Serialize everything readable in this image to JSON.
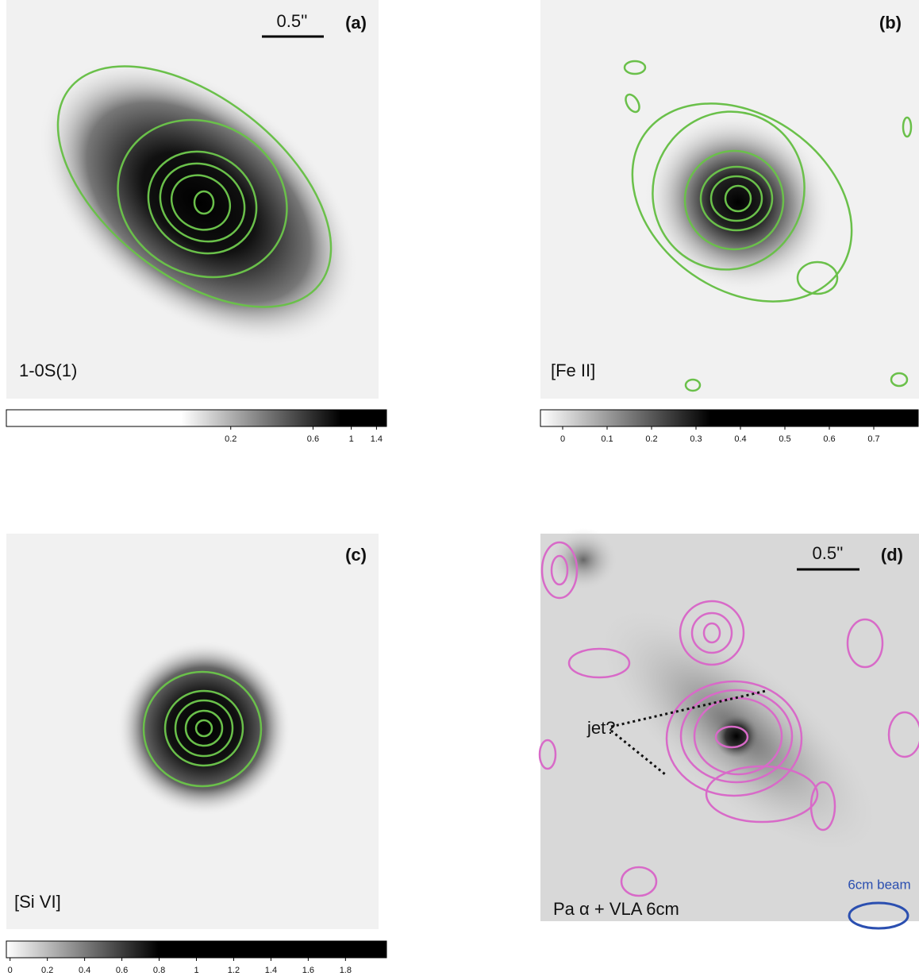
{
  "panels": [
    {
      "letter": "(a)",
      "line": "1-0S(1)",
      "scale_bar": "0.5''",
      "colorbar": {
        "scale": "log",
        "lim": [
          0.01,
          1.6
        ],
        "ticks": [
          0.2,
          0.6,
          1,
          1.4
        ]
      }
    },
    {
      "letter": "(b)",
      "line": "[Fe II]",
      "colorbar": {
        "scale": "linear",
        "lim": [
          -0.05,
          0.8
        ],
        "ticks": [
          0,
          0.1,
          0.2,
          0.3,
          0.4,
          0.5,
          0.6,
          0.7
        ]
      }
    },
    {
      "letter": "(c)",
      "line": "[Si VI]",
      "colorbar": {
        "scale": "linear",
        "lim": [
          -0.02,
          2.02
        ],
        "ticks": [
          0,
          0.2,
          0.4,
          0.6,
          0.8,
          1,
          1.2,
          1.4,
          1.6,
          1.8
        ]
      }
    },
    {
      "letter": "(d)",
      "line": "Pa α + VLA 6cm",
      "scale_bar": "0.5''",
      "annotation": "jet?",
      "beam_label": "6cm beam"
    }
  ]
}
